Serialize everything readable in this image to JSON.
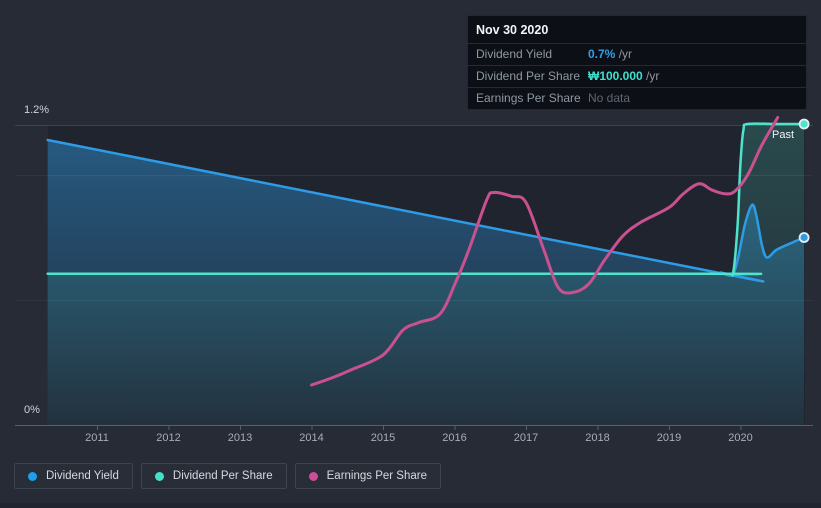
{
  "axis": {
    "y_top_label": "1.2%",
    "y_bottom_label": "0%"
  },
  "annotations": {
    "past": "Past"
  },
  "tooltip": {
    "date": "Nov 30 2020",
    "rows": [
      {
        "label": "Dividend Yield",
        "value": "0.7%",
        "unit": " /yr"
      },
      {
        "label": "Dividend Per Share",
        "value": "₩100.000",
        "unit": " /yr"
      },
      {
        "label": "Earnings Per Share",
        "value": "No data",
        "unit": ""
      }
    ]
  },
  "legend": {
    "items": [
      {
        "label": "Dividend Yield",
        "color": "#1b9fee"
      },
      {
        "label": "Dividend Per Share",
        "color": "#41e3c6"
      },
      {
        "label": "Earnings Per Share",
        "color": "#cc4e96"
      }
    ]
  },
  "colors": {
    "background": "#262b36",
    "plot_background": "#1e242e",
    "gridline": "#323a46",
    "axis_line": "#545f6b",
    "dividend_yield": "#2e9be6",
    "dividend_per_share": "#4fe3cb",
    "earnings_per_share": "#c9518f"
  },
  "chart_data": {
    "type": "line",
    "title": "Dividend yield and payments history (Past)",
    "x_ticks": [
      2011,
      2012,
      2013,
      2014,
      2015,
      2016,
      2017,
      2018,
      2019,
      2020
    ],
    "y_axis": {
      "min": 0,
      "max": 1.2,
      "unit": "%",
      "labeled_values": [
        1.2,
        0
      ],
      "gridline_values": [
        1.2,
        1.0,
        0.5,
        0
      ]
    },
    "legend_position": "bottom-left",
    "series": [
      {
        "name": "Dividend Yield",
        "color": "#2e9be6",
        "area": true,
        "area_opacity": [
          0.45,
          0.05
        ],
        "width": 2.5,
        "end_dot": true,
        "points": [
          [
            2010.31,
            1.14
          ],
          [
            2019.6,
            0.614
          ],
          [
            2019.72,
            0.61
          ],
          [
            2019.88,
            0.6
          ],
          [
            2019.96,
            0.66
          ],
          [
            2020.06,
            0.8
          ],
          [
            2020.16,
            0.88
          ],
          [
            2020.22,
            0.84
          ],
          [
            2020.3,
            0.72
          ],
          [
            2020.37,
            0.67
          ],
          [
            2020.5,
            0.7
          ],
          [
            2020.7,
            0.727
          ],
          [
            2020.89,
            0.75
          ]
        ]
      },
      {
        "name": "Dividend Per Share",
        "color": "#4fe3cb",
        "area": true,
        "area_opacity": [
          0.2,
          0.04
        ],
        "width": 2.5,
        "end_dot": true,
        "points": [
          [
            2010.31,
            0.605
          ],
          [
            2019.5,
            0.605
          ],
          [
            2019.84,
            0.605
          ],
          [
            2019.9,
            0.615
          ],
          [
            2019.96,
            0.8
          ],
          [
            2020.0,
            1.05
          ],
          [
            2020.04,
            1.18
          ],
          [
            2020.1,
            1.204
          ],
          [
            2020.5,
            1.204
          ],
          [
            2020.89,
            1.204
          ]
        ]
      },
      {
        "name": "Earnings Per Share",
        "color": "#c9518f",
        "area": false,
        "width": 3,
        "end_dot": false,
        "points": [
          [
            2014.0,
            0.16
          ],
          [
            2014.3,
            0.19
          ],
          [
            2014.55,
            0.22
          ],
          [
            2015.0,
            0.28
          ],
          [
            2015.28,
            0.38
          ],
          [
            2015.5,
            0.41
          ],
          [
            2015.8,
            0.445
          ],
          [
            2016.03,
            0.58
          ],
          [
            2016.2,
            0.7
          ],
          [
            2016.45,
            0.9
          ],
          [
            2016.55,
            0.93
          ],
          [
            2016.8,
            0.915
          ],
          [
            2017.0,
            0.89
          ],
          [
            2017.25,
            0.7
          ],
          [
            2017.45,
            0.55
          ],
          [
            2017.65,
            0.53
          ],
          [
            2017.88,
            0.565
          ],
          [
            2018.1,
            0.66
          ],
          [
            2018.35,
            0.755
          ],
          [
            2018.6,
            0.81
          ],
          [
            2019.0,
            0.87
          ],
          [
            2019.2,
            0.925
          ],
          [
            2019.42,
            0.965
          ],
          [
            2019.6,
            0.94
          ],
          [
            2019.78,
            0.925
          ],
          [
            2019.92,
            0.935
          ],
          [
            2020.1,
            1.0
          ],
          [
            2020.3,
            1.12
          ],
          [
            2020.52,
            1.23
          ]
        ]
      }
    ],
    "annotations": [
      {
        "text": "Past",
        "x": 2020.5,
        "y": 1.16
      }
    ]
  }
}
